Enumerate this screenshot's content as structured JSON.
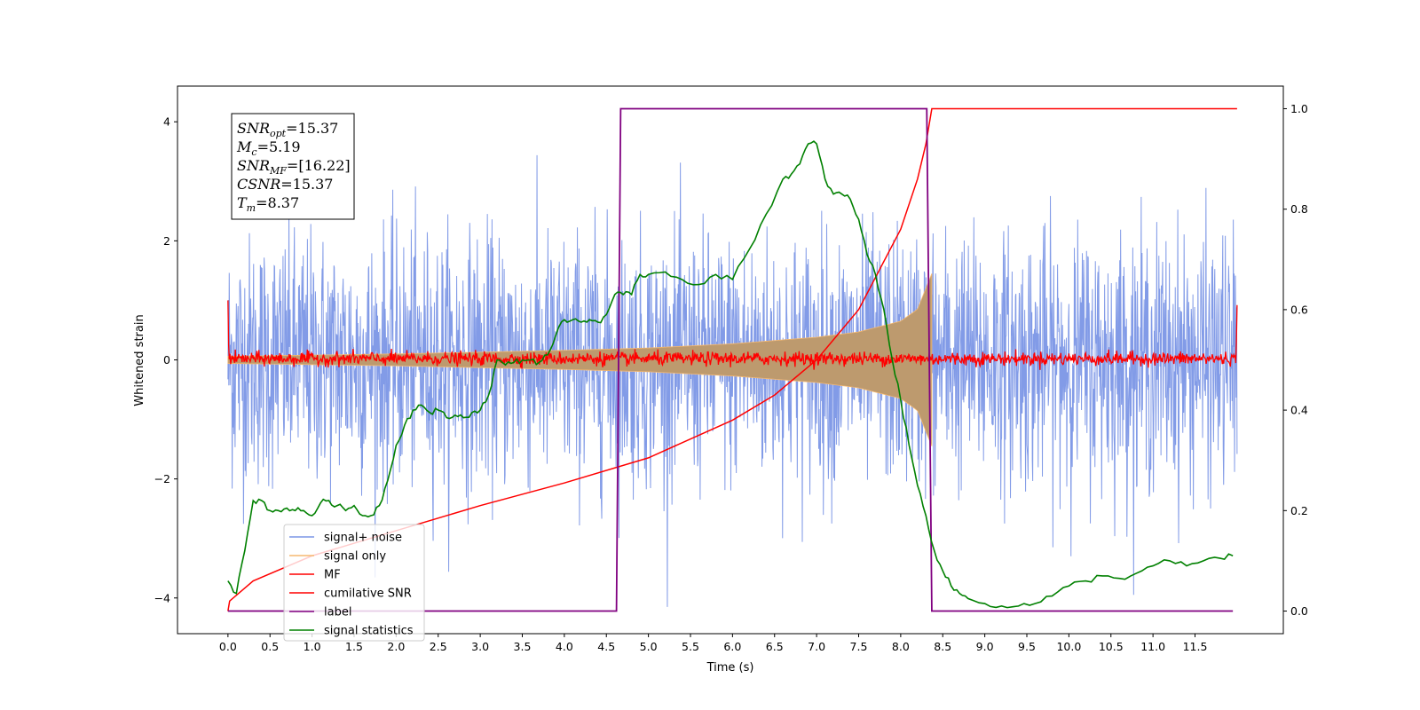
{
  "chart_data": {
    "type": "line",
    "xlabel": "Time (s)",
    "ylabel": "Whitened strain",
    "xlim": [
      -0.6,
      12.55
    ],
    "ylim": [
      -4.6,
      4.6
    ],
    "y2lim": [
      -0.045,
      1.045
    ],
    "x_ticks": [
      "0.0",
      "0.5",
      "1.0",
      "1.5",
      "2.0",
      "2.5",
      "3.0",
      "3.5",
      "4.0",
      "4.5",
      "5.0",
      "5.5",
      "6.0",
      "6.5",
      "7.0",
      "7.5",
      "8.0",
      "8.5",
      "9.0",
      "9.5",
      "10.0",
      "10.5",
      "11.0",
      "11.5"
    ],
    "y_ticks": [
      "4",
      "2",
      "0",
      "−2",
      "−4"
    ],
    "y2_ticks": [
      "1.0",
      "0.8",
      "0.6",
      "0.4",
      "0.2",
      "0.0"
    ],
    "legend_position": "lower-left",
    "info_box": {
      "lines": [
        {
          "base": "SNR",
          "sub": "opt",
          "value": "=15.37"
        },
        {
          "base": "M",
          "sub": "c",
          "value": "=5.19"
        },
        {
          "base": "SNR",
          "sub": "MF",
          "value": "=[16.22]"
        },
        {
          "base": "CSNR",
          "sub": "",
          "value": "=15.37"
        },
        {
          "base": "T",
          "sub": "m",
          "value": "=8.37"
        }
      ]
    },
    "series": [
      {
        "name": "signal+ noise",
        "color": "#7b96e6",
        "axis": "left",
        "noise_std": 1.05,
        "x_range": [
          0.0,
          12.0
        ]
      },
      {
        "name": "signal only",
        "color": "#f5b870",
        "axis": "left",
        "envelope": {
          "t": [
            0.0,
            2.0,
            4.0,
            5.0,
            6.0,
            7.0,
            7.5,
            8.0,
            8.2,
            8.37
          ],
          "amp": [
            0.06,
            0.1,
            0.16,
            0.2,
            0.27,
            0.38,
            0.47,
            0.65,
            0.85,
            1.45
          ]
        }
      },
      {
        "name": "MF",
        "color": "#ff0000",
        "axis": "left",
        "x_range": [
          0.0,
          12.0
        ],
        "level": 0.02,
        "spread": 0.08,
        "start_value": 1.0,
        "end_value": 0.92
      },
      {
        "name": "cumilative SNR",
        "color": "#ff0000",
        "axis": "right",
        "x": [
          0.0,
          0.02,
          0.3,
          1.0,
          2.0,
          3.0,
          4.0,
          5.0,
          6.0,
          6.5,
          7.0,
          7.5,
          8.0,
          8.2,
          8.3,
          8.37,
          8.38,
          12.0
        ],
        "y": [
          0.0,
          0.02,
          0.06,
          0.11,
          0.16,
          0.21,
          0.255,
          0.305,
          0.38,
          0.43,
          0.5,
          0.6,
          0.76,
          0.86,
          0.93,
          1.0,
          1.0,
          1.0
        ]
      },
      {
        "name": "label",
        "color": "#800080",
        "axis": "right",
        "x": [
          0.0,
          4.62,
          4.67,
          8.31,
          8.37,
          11.95
        ],
        "y": [
          0.0,
          0.0,
          1.0,
          1.0,
          0.0,
          0.0
        ]
      },
      {
        "name": "signal statistics",
        "color": "#008000",
        "axis": "right",
        "x": [
          0.0,
          0.1,
          0.2,
          0.3,
          0.4,
          0.5,
          0.6,
          0.7,
          0.8,
          0.9,
          1.0,
          1.1,
          1.2,
          1.3,
          1.4,
          1.5,
          1.6,
          1.7,
          1.8,
          1.9,
          2.0,
          2.1,
          2.2,
          2.3,
          2.4,
          2.5,
          2.6,
          2.7,
          2.8,
          2.9,
          3.0,
          3.1,
          3.2,
          3.3,
          3.4,
          3.5,
          3.6,
          3.7,
          3.8,
          3.9,
          4.0,
          4.1,
          4.2,
          4.3,
          4.4,
          4.5,
          4.6,
          4.7,
          4.8,
          4.9,
          5.0,
          5.2,
          5.4,
          5.6,
          5.8,
          6.0,
          6.2,
          6.4,
          6.6,
          6.7,
          6.8,
          6.9,
          7.0,
          7.1,
          7.2,
          7.3,
          7.4,
          7.5,
          7.6,
          7.7,
          7.8,
          7.9,
          8.0,
          8.1,
          8.2,
          8.3,
          8.4,
          8.5,
          8.6,
          8.7,
          8.8,
          9.0,
          9.2,
          9.4,
          9.6,
          9.8,
          10.0,
          10.2,
          10.4,
          10.6,
          10.8,
          11.0,
          11.2,
          11.4,
          11.6,
          11.8,
          11.95
        ],
        "y": [
          0.06,
          0.035,
          0.12,
          0.22,
          0.22,
          0.2,
          0.2,
          0.205,
          0.2,
          0.2,
          0.19,
          0.215,
          0.22,
          0.21,
          0.2,
          0.21,
          0.19,
          0.19,
          0.21,
          0.26,
          0.33,
          0.37,
          0.4,
          0.41,
          0.395,
          0.4,
          0.385,
          0.39,
          0.385,
          0.395,
          0.4,
          0.43,
          0.5,
          0.49,
          0.495,
          0.5,
          0.5,
          0.495,
          0.51,
          0.55,
          0.58,
          0.58,
          0.575,
          0.58,
          0.575,
          0.59,
          0.63,
          0.63,
          0.63,
          0.67,
          0.67,
          0.675,
          0.66,
          0.65,
          0.67,
          0.66,
          0.72,
          0.79,
          0.86,
          0.87,
          0.89,
          0.93,
          0.93,
          0.86,
          0.83,
          0.83,
          0.82,
          0.78,
          0.71,
          0.67,
          0.6,
          0.5,
          0.42,
          0.33,
          0.25,
          0.19,
          0.12,
          0.08,
          0.05,
          0.035,
          0.025,
          0.015,
          0.01,
          0.01,
          0.015,
          0.03,
          0.05,
          0.06,
          0.07,
          0.065,
          0.075,
          0.09,
          0.1,
          0.09,
          0.1,
          0.105,
          0.11
        ]
      }
    ]
  }
}
